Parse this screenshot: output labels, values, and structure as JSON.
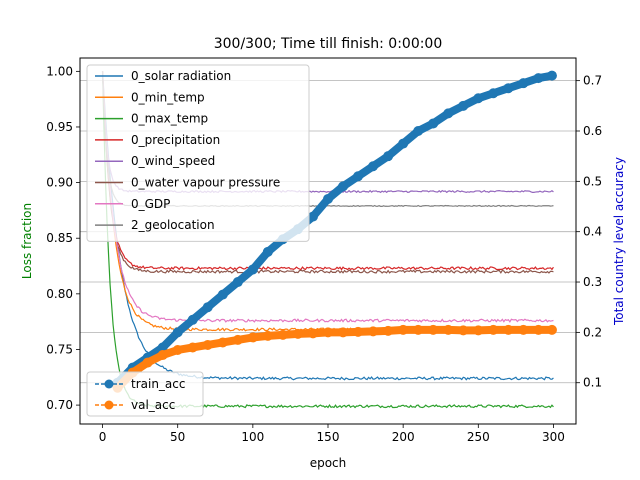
{
  "chart_data": {
    "type": "line",
    "title": "300/300; Time till finish: 0:00:00",
    "xlabel": "epoch",
    "ylabel_left": "Loss fraction",
    "ylabel_right": "Total country level accuracy",
    "xlim": [
      -15,
      315
    ],
    "ylim_left": [
      0.683,
      1.012
    ],
    "ylim_right": [
      0.018,
      0.745
    ],
    "x_ticks": [
      0,
      50,
      100,
      150,
      200,
      250,
      300
    ],
    "y_ticks_left": [
      0.7,
      0.75,
      0.8,
      0.85,
      0.9,
      0.95,
      1.0
    ],
    "y_ticks_right": [
      0.1,
      0.2,
      0.3,
      0.4,
      0.5,
      0.6,
      0.7
    ],
    "grid_right_axis": true,
    "ylabel_left_color": "#008000",
    "ylabel_right_color": "#0000cc",
    "loss_legend_position": "upper-left",
    "acc_legend_position": "lower-left",
    "loss_series": [
      {
        "name": "0_solar radiation",
        "color": "#1f77b4",
        "start": 1.0,
        "final": 0.724,
        "tau": 12,
        "noise": 0.0012
      },
      {
        "name": "0_min_temp",
        "color": "#ff7f0e",
        "start": 1.0,
        "final": 0.768,
        "tau": 8,
        "noise": 0.0012
      },
      {
        "name": "0_max_temp",
        "color": "#2ca02c",
        "start": 1.0,
        "final": 0.699,
        "tau": 5,
        "noise": 0.0012
      },
      {
        "name": "0_precipitation",
        "color": "#d62728",
        "start": 1.0,
        "final": 0.823,
        "tau": 5,
        "noise": 0.0012
      },
      {
        "name": "0_wind_speed",
        "color": "#9467bd",
        "start": 1.0,
        "final": 0.892,
        "tau": 3,
        "noise": 0.0008
      },
      {
        "name": "0_water vapour pressure",
        "color": "#8c564b",
        "start": 1.0,
        "final": 0.82,
        "tau": 5,
        "noise": 0.0012
      },
      {
        "name": "0_GDP",
        "color": "#e377c2",
        "start": 1.0,
        "final": 0.776,
        "tau": 8,
        "noise": 0.0012
      },
      {
        "name": "2_geolocation",
        "color": "#7f7f7f",
        "start": 1.0,
        "final": 0.879,
        "tau": 3,
        "noise": 0.0004
      }
    ],
    "acc_series": [
      {
        "name": "train_acc",
        "color": "#1f77b4",
        "linestyle": "dashed",
        "x": [
          10,
          20,
          30,
          40,
          50,
          60,
          70,
          80,
          90,
          100,
          110,
          120,
          130,
          140,
          150,
          160,
          170,
          180,
          190,
          200,
          210,
          220,
          230,
          240,
          250,
          260,
          270,
          280,
          290,
          299
        ],
        "y": [
          0.1,
          0.13,
          0.15,
          0.17,
          0.2,
          0.225,
          0.25,
          0.275,
          0.3,
          0.325,
          0.36,
          0.385,
          0.405,
          0.43,
          0.465,
          0.49,
          0.51,
          0.53,
          0.55,
          0.575,
          0.6,
          0.615,
          0.635,
          0.65,
          0.665,
          0.675,
          0.685,
          0.695,
          0.705,
          0.71
        ]
      },
      {
        "name": "val_acc",
        "color": "#ff7f0e",
        "linestyle": "dashed",
        "x": [
          10,
          20,
          30,
          40,
          50,
          60,
          70,
          80,
          90,
          100,
          110,
          120,
          130,
          140,
          150,
          160,
          170,
          180,
          190,
          200,
          210,
          220,
          230,
          240,
          250,
          260,
          270,
          280,
          290,
          299
        ],
        "y": [
          0.09,
          0.12,
          0.14,
          0.155,
          0.165,
          0.17,
          0.175,
          0.18,
          0.185,
          0.19,
          0.193,
          0.195,
          0.197,
          0.198,
          0.2,
          0.2,
          0.201,
          0.202,
          0.203,
          0.205,
          0.205,
          0.205,
          0.205,
          0.204,
          0.204,
          0.205,
          0.205,
          0.205,
          0.205,
          0.205
        ]
      }
    ]
  }
}
